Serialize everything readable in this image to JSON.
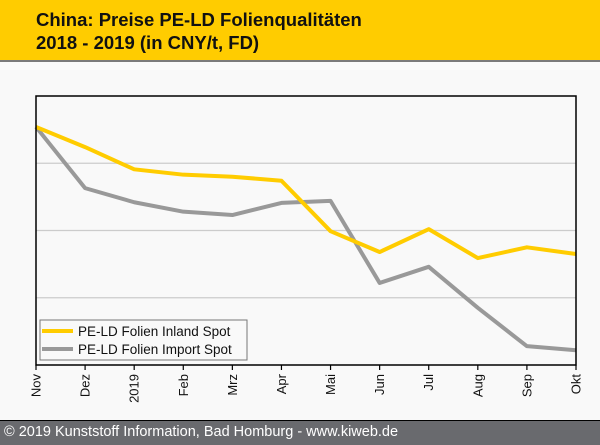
{
  "header": {
    "title_line1": "China: Preise PE-LD Folienqualitäten",
    "title_line2": "2018 - 2019 (in CNY/t, FD)",
    "background": "#ffcc00"
  },
  "footer": {
    "text": "© 2019 Kunststoff Information, Bad Homburg - www.kiweb.de",
    "background": "#696a6e"
  },
  "chart_data": {
    "type": "line",
    "title": "China: Preise PE-LD Folienqualitäten 2018 - 2019 (in CNY/t, FD)",
    "xlabel": "",
    "ylabel": "",
    "y_unit_note": "No y-axis labels shown; values expressed in relative gridline units (0 = bottom axis, 4 = top of plot)",
    "ylim": [
      0,
      4
    ],
    "y_gridlines": [
      1,
      2,
      3
    ],
    "grid": true,
    "legend_position": "bottom-left",
    "categories": [
      "Nov",
      "Dez",
      "2019",
      "Feb",
      "Mrz",
      "Apr",
      "Mai",
      "Jun",
      "Jul",
      "Aug",
      "Sep",
      "Okt"
    ],
    "series": [
      {
        "name": "PE-LD Folien Inland Spot",
        "color": "#ffcc00",
        "values": [
          3.54,
          3.24,
          2.91,
          2.83,
          2.8,
          2.74,
          1.99,
          1.68,
          2.02,
          1.59,
          1.75,
          1.65
        ]
      },
      {
        "name": "PE-LD Folien Import Spot",
        "color": "#999999",
        "values": [
          3.54,
          2.63,
          2.42,
          2.28,
          2.23,
          2.41,
          2.44,
          1.22,
          1.46,
          0.85,
          0.28,
          0.22
        ]
      }
    ]
  }
}
